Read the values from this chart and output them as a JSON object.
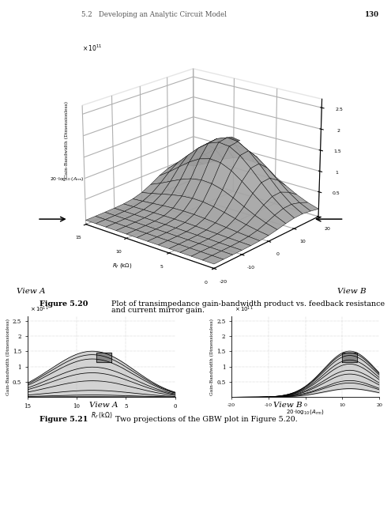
{
  "header_section": "5.2   Developing an Analytic Circuit Model",
  "header_page": "130",
  "background_color": "#ffffff",
  "surface_color": "#cccccc",
  "surface_edge_color": "#111111",
  "marker_color": "#888888",
  "fig20_bold": "Figure 5.20",
  "fig20_text": "Plot of transimpedance gain-bandwidth product vs. feedback resistance",
  "fig20_text2": "and current mirror gain.",
  "fig21_bold": "Figure 5.21",
  "fig21_text": "Two projections of the GBW plot in Figure 5.20.",
  "view_a": "View A",
  "view_b": "View B"
}
